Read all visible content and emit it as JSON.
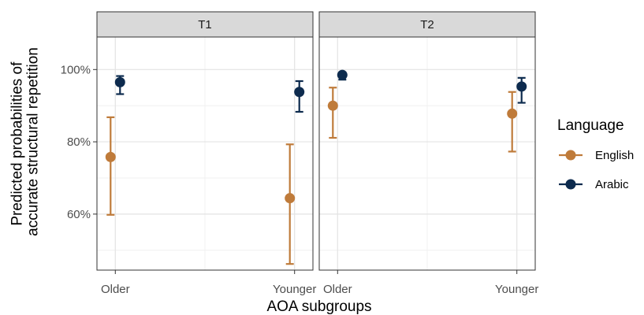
{
  "chart_data": {
    "type": "scatter",
    "subtype": "point-with-error-bars, faceted",
    "xlabel": "AOA subgroups",
    "ylabel_lines": [
      "Predicted probabilities of",
      "accurate structural repetition"
    ],
    "categories": [
      "Older",
      "Younger"
    ],
    "y_ticks": [
      "60%",
      "80%",
      "100%"
    ],
    "ylim": [
      0.445,
      1.09
    ],
    "grid": true,
    "legend": {
      "title": "Language",
      "placement": "right",
      "entries": [
        {
          "name": "English",
          "color": "#bf7b3a"
        },
        {
          "name": "Arabic",
          "color": "#0d2b4e"
        }
      ]
    },
    "facets": [
      {
        "label": "T1",
        "series": [
          {
            "name": "English",
            "color": "#bf7b3a",
            "points": [
              {
                "x": "Older",
                "y": 0.758,
                "lo": 0.598,
                "hi": 0.868
              },
              {
                "x": "Younger",
                "y": 0.644,
                "lo": 0.462,
                "hi": 0.793
              }
            ]
          },
          {
            "name": "Arabic",
            "color": "#0d2b4e",
            "points": [
              {
                "x": "Older",
                "y": 0.965,
                "lo": 0.932,
                "hi": 0.982
              },
              {
                "x": "Younger",
                "y": 0.938,
                "lo": 0.883,
                "hi": 0.968
              }
            ]
          }
        ]
      },
      {
        "label": "T2",
        "series": [
          {
            "name": "English",
            "color": "#bf7b3a",
            "points": [
              {
                "x": "Older",
                "y": 0.9,
                "lo": 0.811,
                "hi": 0.95
              },
              {
                "x": "Younger",
                "y": 0.878,
                "lo": 0.773,
                "hi": 0.938
              }
            ]
          },
          {
            "name": "Arabic",
            "color": "#0d2b4e",
            "points": [
              {
                "x": "Older",
                "y": 0.985,
                "lo": 0.972,
                "hi": 0.992
              },
              {
                "x": "Younger",
                "y": 0.953,
                "lo": 0.908,
                "hi": 0.977
              }
            ]
          }
        ]
      }
    ]
  }
}
